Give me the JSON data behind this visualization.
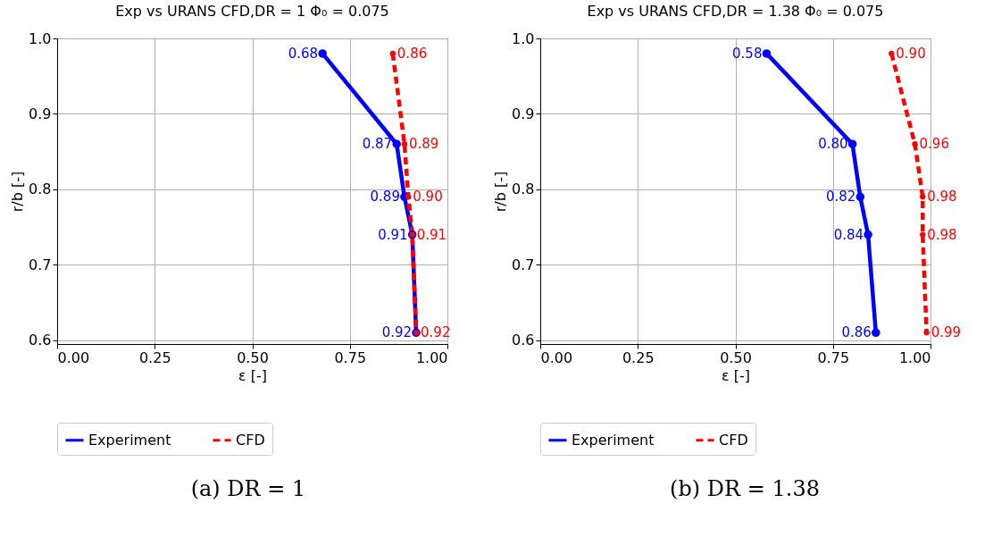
{
  "chart_data": [
    {
      "type": "line",
      "title": "Exp vs URANS CFD,DR = 1 Φ₀ = 0.075",
      "xlabel": "ε [-]",
      "ylabel": "r/b [-]",
      "xlim": [
        0,
        1
      ],
      "ylim": [
        0.595,
        1.0
      ],
      "xticks": [
        {
          "value": 0,
          "label": "0.00"
        },
        {
          "value": 0.25,
          "label": "0.25"
        },
        {
          "value": 0.5,
          "label": "0.50"
        },
        {
          "value": 0.75,
          "label": "0.75"
        },
        {
          "value": 1,
          "label": "1.00"
        }
      ],
      "yticks": [
        0.6,
        0.7,
        0.8,
        0.9,
        {
          "value": 1,
          "label": "1.0"
        }
      ],
      "grid": true,
      "legend": "bottom",
      "marker": "circle",
      "annotations": [
        "(a) DR = 1",
        {
          "text": "0.68",
          "x": 0.68,
          "y": 0.98
        },
        {
          "text": "0.87",
          "x": 0.87,
          "y": 0.86
        },
        {
          "text": "0.89",
          "x": 0.89,
          "y": 0.79
        },
        {
          "text": "0.91",
          "x": 0.91,
          "y": 0.74
        },
        {
          "text": "0.92",
          "x": 0.92,
          "y": 0.61
        },
        {
          "text": "0.86",
          "x": 0.86,
          "y": 0.98
        },
        {
          "text": "0.89",
          "x": 0.89,
          "y": 0.86
        },
        {
          "text": "0.90",
          "x": 0.9,
          "y": 0.79
        },
        {
          "text": "0.91",
          "x": 0.91,
          "y": 0.74
        },
        {
          "text": "0.92",
          "x": 0.92,
          "y": 0.61
        }
      ],
      "series": [
        {
          "name": "Experiment",
          "color": "#0000ff",
          "line_style": "solid",
          "x": [
            0.68,
            0.87,
            0.89,
            0.91,
            0.92
          ],
          "values": [
            0.98,
            0.86,
            0.79,
            0.74,
            0.61
          ]
        },
        {
          "name": "CFD",
          "color": "#ff0000",
          "line_style": "dashed",
          "x": [
            0.86,
            0.89,
            0.9,
            0.91,
            0.92
          ],
          "values": [
            0.98,
            0.86,
            0.79,
            0.74,
            0.61
          ]
        }
      ]
    },
    {
      "type": "line",
      "title": "Exp vs URANS CFD,DR = 1.38 Φ₀ = 0.075",
      "xlabel": "ε [-]",
      "ylabel": "r/b [-]",
      "xlim": [
        0,
        1
      ],
      "ylim": [
        0.595,
        1.0
      ],
      "xticks": [
        {
          "value": 0,
          "label": "0.00"
        },
        {
          "value": 0.25,
          "label": "0.25"
        },
        {
          "value": 0.5,
          "label": "0.50"
        },
        {
          "value": 0.75,
          "label": "0.75"
        },
        {
          "value": 1,
          "label": "1.00"
        }
      ],
      "yticks": [
        0.6,
        0.7,
        0.8,
        0.9,
        {
          "value": 1,
          "label": "1.0"
        }
      ],
      "grid": true,
      "legend": "bottom",
      "marker": "circle",
      "annotations": [
        "(b) DR = 1.38",
        {
          "text": "0.58",
          "x": 0.58,
          "y": 0.98
        },
        {
          "text": "0.80",
          "x": 0.8,
          "y": 0.86
        },
        {
          "text": "0.82",
          "x": 0.82,
          "y": 0.79
        },
        {
          "text": "0.84",
          "x": 0.84,
          "y": 0.74
        },
        {
          "text": "0.86",
          "x": 0.86,
          "y": 0.61
        },
        {
          "text": "0.90",
          "x": 0.9,
          "y": 0.98
        },
        {
          "text": "0.96",
          "x": 0.96,
          "y": 0.86
        },
        {
          "text": "0.98",
          "x": 0.98,
          "y": 0.79
        },
        {
          "text": "0.98",
          "x": 0.98,
          "y": 0.74
        },
        {
          "text": "0.99",
          "x": 0.99,
          "y": 0.61
        }
      ],
      "series": [
        {
          "name": "Experiment",
          "color": "#0000ff",
          "line_style": "solid",
          "x": [
            0.58,
            0.8,
            0.82,
            0.84,
            0.86
          ],
          "values": [
            0.98,
            0.86,
            0.79,
            0.74,
            0.61
          ]
        },
        {
          "name": "CFD",
          "color": "#ff0000",
          "line_style": "dashed",
          "x": [
            0.9,
            0.96,
            0.98,
            0.98,
            0.99
          ],
          "values": [
            0.98,
            0.86,
            0.79,
            0.74,
            0.61
          ]
        }
      ]
    }
  ]
}
